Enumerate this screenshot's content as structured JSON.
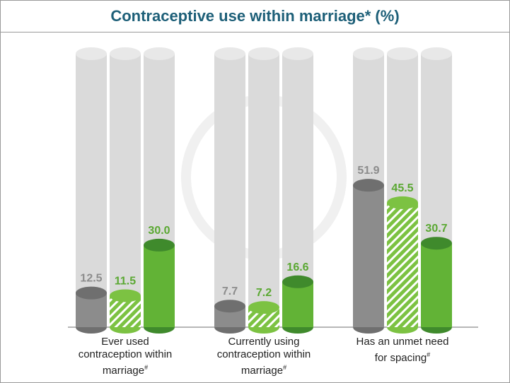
{
  "chart_data": {
    "type": "cylinder-bar",
    "title": "Contraceptive use within marriage* (%)",
    "categories": [
      "Ever used contraception within marriage",
      "Currently using contraception within marriage",
      "Has an unmet need for spacing"
    ],
    "category_marks": [
      "#",
      "#",
      "#"
    ],
    "ylim": [
      0,
      100
    ],
    "series": [
      {
        "color": "#8c8c8c",
        "top_color": "#6f6f6f",
        "label_color": "#8c8c8c",
        "hatch": false,
        "values": [
          12.5,
          7.7,
          51.9
        ]
      },
      {
        "color": "#7cc242",
        "top_color": "#7cc242",
        "label_color": "#5aa832",
        "hatch": true,
        "values": [
          11.5,
          7.2,
          45.5
        ]
      },
      {
        "color": "#62b336",
        "top_color": "#3f8a2c",
        "label_color": "#5aa832",
        "hatch": false,
        "values": [
          30.0,
          16.6,
          30.7
        ]
      }
    ]
  }
}
